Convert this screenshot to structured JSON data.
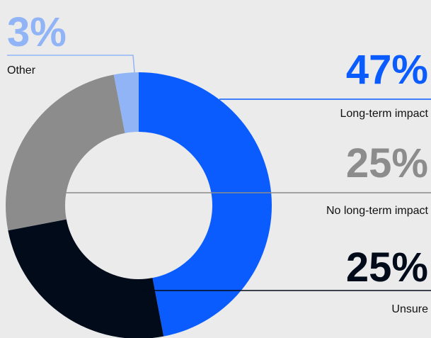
{
  "chart_data": {
    "type": "donut",
    "categories": [
      "Long-term impact",
      "Unsure",
      "No long-term impact",
      "Other"
    ],
    "values": [
      47,
      25,
      25,
      3
    ],
    "value_labels": [
      "47%",
      "25%",
      "25%",
      "3%"
    ],
    "colors": [
      "#0a5cff",
      "#020b1a",
      "#8c8c8c",
      "#91b4f7"
    ]
  }
}
